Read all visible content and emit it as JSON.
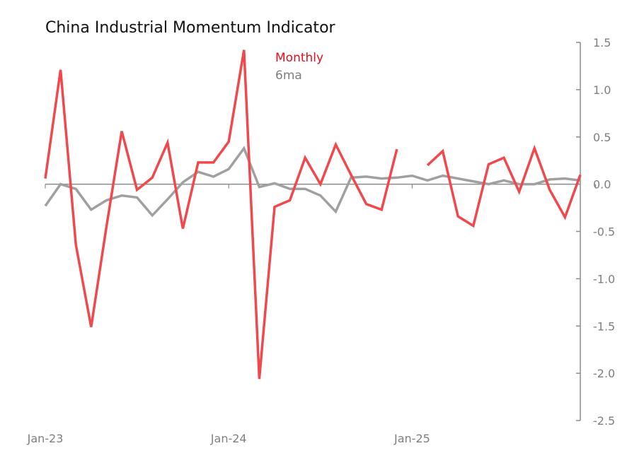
{
  "chart_data": {
    "type": "line",
    "title": "China Industrial Momentum Indicator",
    "xlabel": "",
    "ylabel": "",
    "ylim": [
      -2.5,
      1.5
    ],
    "yticks": [
      "1.5",
      "1.0",
      "0.5",
      "0.0",
      "-0.5",
      "-1.0",
      "-1.5",
      "-2.0",
      "-2.5"
    ],
    "ytick_values": [
      1.5,
      1.0,
      0.5,
      0.0,
      -0.5,
      -1.0,
      -1.5,
      -2.0,
      -2.5
    ],
    "x_start": "Jan-23",
    "x_tick_labels": [
      "Jan-23",
      "Jan-24",
      "Jan-25"
    ],
    "x_tick_indices": [
      0,
      12,
      24
    ],
    "grid": false,
    "legend_position": "top-center",
    "series": [
      {
        "name": "Monthly",
        "color": "#f0484c",
        "values": [
          0.06,
          1.21,
          -0.64,
          -1.51,
          -0.45,
          0.56,
          -0.06,
          0.07,
          0.44,
          -0.47,
          0.23,
          0.23,
          0.45,
          1.42,
          -2.06,
          -0.24,
          -0.17,
          0.28,
          0.0,
          0.42,
          0.1,
          -0.21,
          -0.27,
          0.37,
          null,
          0.2,
          0.35,
          -0.34,
          -0.44,
          0.21,
          0.28,
          -0.08,
          0.38,
          -0.06,
          -0.35,
          0.1
        ]
      },
      {
        "name": "6ma",
        "color": "#a0a0a0",
        "values": [
          -0.23,
          0.0,
          -0.05,
          -0.27,
          -0.17,
          -0.12,
          -0.14,
          -0.33,
          -0.16,
          0.02,
          0.13,
          0.08,
          0.16,
          0.38,
          -0.03,
          0.01,
          -0.05,
          -0.05,
          -0.12,
          -0.29,
          0.07,
          0.08,
          0.06,
          0.07,
          0.09,
          0.04,
          0.09,
          0.06,
          0.03,
          0.0,
          0.04,
          0.0,
          0.0,
          0.05,
          0.06,
          0.04
        ]
      }
    ]
  }
}
